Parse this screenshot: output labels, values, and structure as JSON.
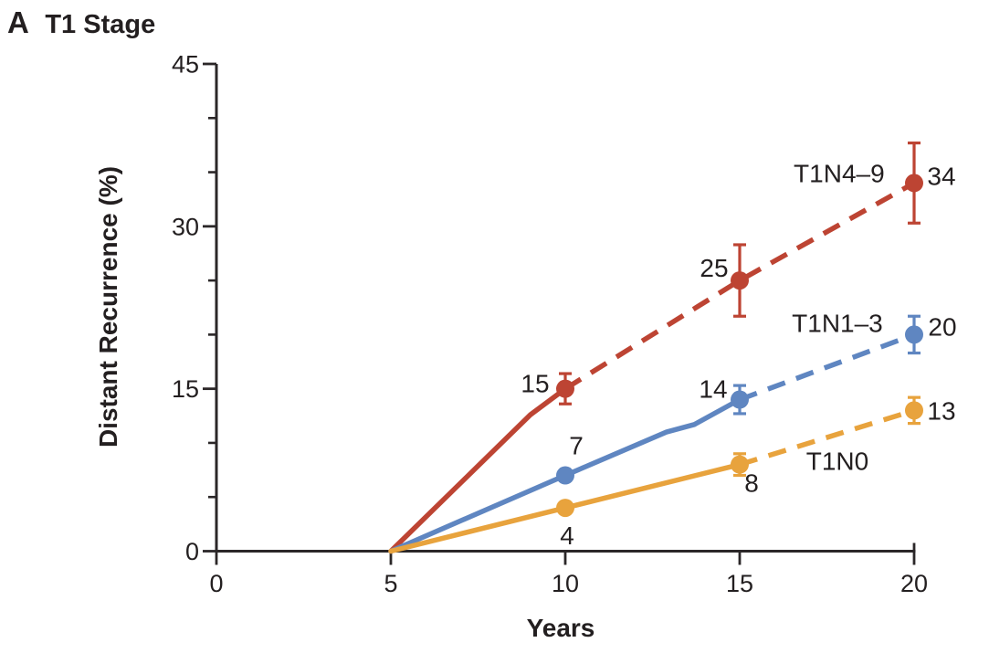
{
  "panel": {
    "letter": "A",
    "title": "T1 Stage"
  },
  "colors": {
    "background": "#ffffff",
    "axis": "#2b2728",
    "text": "#231f20",
    "red": "#bd4433",
    "blue": "#5f86c1",
    "orange": "#e8a33d"
  },
  "chart_data": {
    "type": "line",
    "panel_letter": "A",
    "title": "T1 Stage",
    "xlabel": "Years",
    "ylabel": "Distant Recurrence (%)",
    "xlim": [
      0,
      20
    ],
    "ylim": [
      0,
      45
    ],
    "xticks": [
      0,
      5,
      10,
      15,
      20
    ],
    "yticks_major": [
      0,
      15,
      30,
      45
    ],
    "yticks_minor": [
      5,
      10,
      20,
      25,
      35,
      40
    ],
    "grid": false,
    "legend": "inline-series-labels",
    "series": [
      {
        "name": "T1N4-9",
        "display_label": "T1N4–9",
        "color": "#bd4433",
        "line_style": "solid-then-dashed",
        "solid_path": [
          [
            5,
            0
          ],
          [
            9,
            12.6
          ],
          [
            10,
            15
          ]
        ],
        "dashed_path": [
          [
            10,
            15
          ],
          [
            15,
            25
          ],
          [
            20,
            34
          ]
        ],
        "points": [
          {
            "x": 10,
            "y": 15,
            "label": "15",
            "err": 1.4,
            "label_dx": -33,
            "label_dy": -6
          },
          {
            "x": 15,
            "y": 25,
            "label": "25",
            "err": 3.3,
            "label_dx": -28,
            "label_dy": -14
          },
          {
            "x": 20,
            "y": 34,
            "label": "34",
            "err": 3.7,
            "label_dx": 30,
            "label_dy": -8
          }
        ],
        "series_label": {
          "text": "T1N4–9",
          "x": 17.85,
          "y": 34.9
        }
      },
      {
        "name": "T1N1-3",
        "display_label": "T1N1–3",
        "color": "#5f86c1",
        "line_style": "solid-then-dashed",
        "solid_path": [
          [
            5,
            0
          ],
          [
            10,
            7
          ],
          [
            12.9,
            11
          ],
          [
            13.7,
            11.7
          ],
          [
            15,
            14
          ]
        ],
        "dashed_path": [
          [
            15,
            14
          ],
          [
            20,
            20
          ]
        ],
        "points": [
          {
            "x": 10,
            "y": 7,
            "label": "7",
            "err": 0,
            "label_dx": 12,
            "label_dy": -33
          },
          {
            "x": 15,
            "y": 14,
            "label": "14",
            "err": 1.3,
            "label_dx": -29,
            "label_dy": -12
          },
          {
            "x": 20,
            "y": 20,
            "label": "20",
            "err": 1.7,
            "label_dx": 31,
            "label_dy": -9
          }
        ],
        "series_label": {
          "text": "T1N1–3",
          "x": 17.8,
          "y": 21.1
        }
      },
      {
        "name": "T1N0",
        "display_label": "T1N0",
        "color": "#e8a33d",
        "line_style": "solid-then-dashed",
        "solid_path": [
          [
            5,
            0
          ],
          [
            10,
            4
          ],
          [
            15,
            8
          ]
        ],
        "dashed_path": [
          [
            15,
            8
          ],
          [
            20,
            13
          ]
        ],
        "points": [
          {
            "x": 10,
            "y": 4,
            "label": "4",
            "err": 0,
            "label_dx": 2,
            "label_dy": 30
          },
          {
            "x": 15,
            "y": 8,
            "label": "8",
            "err": 1.0,
            "label_dx": 13,
            "label_dy": 20
          },
          {
            "x": 20,
            "y": 13,
            "label": "13",
            "err": 1.2,
            "label_dx": 30,
            "label_dy": 0
          }
        ],
        "series_label": {
          "text": "T1N0",
          "x": 17.8,
          "y": 8.35
        }
      }
    ]
  }
}
